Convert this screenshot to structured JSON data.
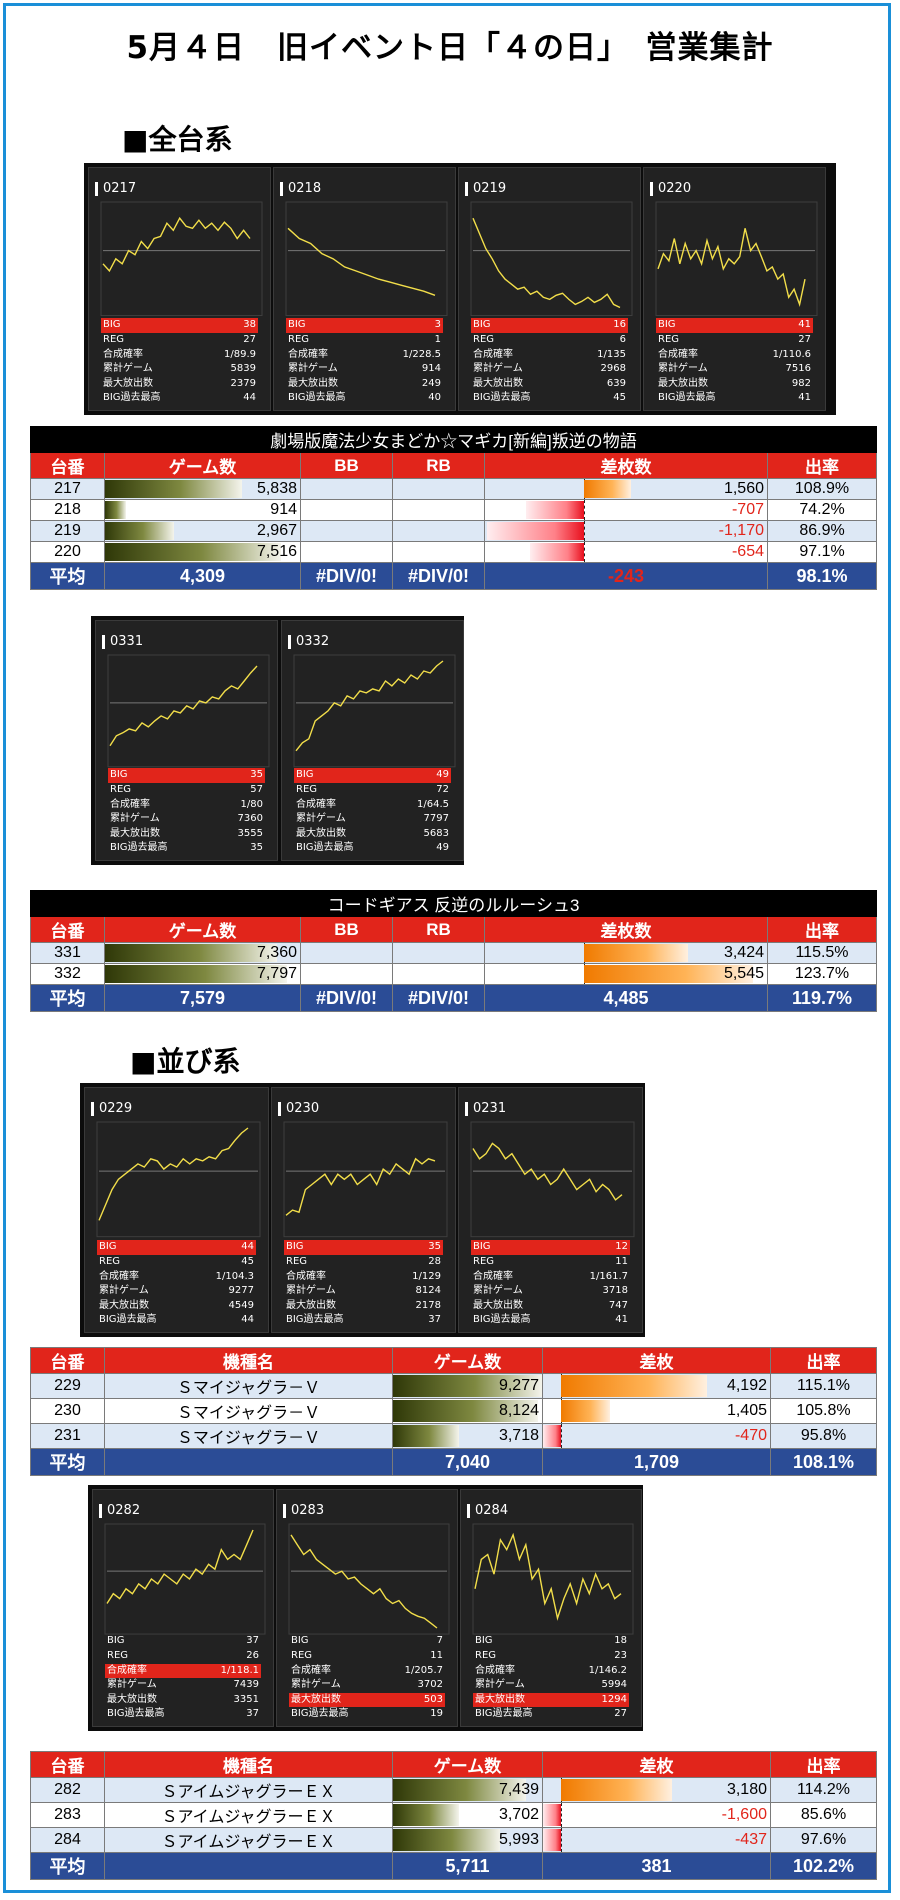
{
  "title": "5月４日　旧イベント日「４の日」　営業集計",
  "stat_labels": [
    "BIG",
    "REG",
    "合成確率",
    "累計ゲーム",
    "最大放出数",
    "BIG過去最高"
  ],
  "colors": {
    "header_red": "#e1251b",
    "avg_blue": "#2b4c96",
    "line_yellow": "#f2de4a",
    "frame_blue": "#1a8fd8"
  },
  "sections": [
    {
      "heading": "■全台系"
    },
    {
      "heading": "■並び系"
    }
  ],
  "blocks": [
    {
      "cards": [
        {
          "id": "0217",
          "stats": [
            "38",
            "27",
            "1/89.9",
            "5839",
            "2379",
            "44"
          ],
          "hl": 0,
          "pts": [
            0.55,
            0.62,
            0.5,
            0.55,
            0.42,
            0.46,
            0.33,
            0.4,
            0.3,
            0.28,
            0.15,
            0.22,
            0.1,
            0.18,
            0.2,
            0.12,
            0.2,
            0.15,
            0.22,
            0.14,
            0.2,
            0.3,
            0.22,
            0.3
          ]
        },
        {
          "id": "0218",
          "stats": [
            "3",
            "1",
            "1/228.5",
            "914",
            "249",
            "40"
          ],
          "hl": 0,
          "pts": [
            0.2,
            0.3,
            0.35,
            0.45,
            0.5,
            0.58,
            0.62,
            0.66,
            0.7,
            0.73,
            0.76,
            0.79,
            0.82,
            0.86
          ]
        },
        {
          "id": "0219",
          "stats": [
            "16",
            "6",
            "1/135",
            "2968",
            "639",
            "45"
          ],
          "hl": 0,
          "pts": [
            0.1,
            0.25,
            0.4,
            0.5,
            0.62,
            0.7,
            0.75,
            0.8,
            0.78,
            0.85,
            0.82,
            0.88,
            0.9,
            0.86,
            0.84,
            0.9,
            0.95,
            0.92,
            0.88,
            0.93,
            0.9,
            0.85,
            0.95,
            0.98
          ]
        },
        {
          "id": "0220",
          "stats": [
            "41",
            "27",
            "1/110.6",
            "7516",
            "982",
            "41"
          ],
          "hl": 0,
          "pts": [
            0.6,
            0.45,
            0.52,
            0.3,
            0.55,
            0.35,
            0.5,
            0.42,
            0.55,
            0.32,
            0.5,
            0.38,
            0.6,
            0.5,
            0.55,
            0.48,
            0.2,
            0.42,
            0.35,
            0.48,
            0.62,
            0.58,
            0.7,
            0.65,
            0.88,
            0.8,
            0.95,
            0.7
          ]
        }
      ],
      "table": {
        "kind": "type1",
        "machine": "劇場版魔法少女まどか☆マギカ[新編]叛逆の物語",
        "headers": [
          "台番",
          "ゲーム数",
          "BB",
          "RB",
          "差枚数",
          "出率"
        ],
        "rows": [
          {
            "no": "217",
            "games": "5,838",
            "g": 5838,
            "bb": "",
            "rb": "",
            "diff": "1,560",
            "d": 1560,
            "rate": "108.9%"
          },
          {
            "no": "218",
            "games": "914",
            "g": 914,
            "bb": "",
            "rb": "",
            "diff": "-707",
            "d": -707,
            "rate": "74.2%"
          },
          {
            "no": "219",
            "games": "2,967",
            "g": 2967,
            "bb": "",
            "rb": "",
            "diff": "-1,170",
            "d": -1170,
            "rate": "86.9%"
          },
          {
            "no": "220",
            "games": "7,516",
            "g": 7516,
            "bb": "",
            "rb": "",
            "diff": "-654",
            "d": -654,
            "rate": "97.1%"
          }
        ],
        "avg": {
          "label": "平均",
          "games": "4,309",
          "bb": "#DIV/0!",
          "rb": "#DIV/0!",
          "diff": "-243",
          "rate": "98.1%"
        }
      }
    },
    {
      "cards": [
        {
          "id": "0331",
          "stats": [
            "35",
            "57",
            "1/80",
            "7360",
            "3555",
            "35"
          ],
          "hl": 0,
          "pts": [
            0.85,
            0.75,
            0.72,
            0.68,
            0.7,
            0.62,
            0.66,
            0.6,
            0.55,
            0.58,
            0.5,
            0.52,
            0.45,
            0.48,
            0.4,
            0.42,
            0.36,
            0.38,
            0.3,
            0.25,
            0.28,
            0.2,
            0.12,
            0.05
          ]
        },
        {
          "id": "0332",
          "stats": [
            "49",
            "72",
            "1/64.5",
            "7797",
            "5683",
            "49"
          ],
          "hl": 0,
          "pts": [
            0.9,
            0.82,
            0.78,
            0.6,
            0.55,
            0.5,
            0.42,
            0.45,
            0.35,
            0.38,
            0.3,
            0.32,
            0.28,
            0.3,
            0.2,
            0.25,
            0.18,
            0.22,
            0.14,
            0.18,
            0.1,
            0.12,
            0.05,
            0.0
          ]
        }
      ],
      "table": {
        "kind": "type1",
        "machine": "コードギアス 反逆のルルーシュ3",
        "headers": [
          "台番",
          "ゲーム数",
          "BB",
          "RB",
          "差枚数",
          "出率"
        ],
        "rows": [
          {
            "no": "331",
            "games": "7,360",
            "g": 7360,
            "bb": "",
            "rb": "",
            "diff": "3,424",
            "d": 3424,
            "rate": "115.5%"
          },
          {
            "no": "332",
            "games": "7,797",
            "g": 7797,
            "bb": "",
            "rb": "",
            "diff": "5,545",
            "d": 5545,
            "rate": "123.7%"
          }
        ],
        "avg": {
          "label": "平均",
          "games": "7,579",
          "bb": "#DIV/0!",
          "rb": "#DIV/0!",
          "diff": "4,485",
          "rate": "119.7%"
        }
      }
    },
    {
      "cards": [
        {
          "id": "0229",
          "stats": [
            "44",
            "45",
            "1/104.3",
            "9277",
            "4549",
            "44"
          ],
          "hl": 0,
          "pts": [
            0.9,
            0.75,
            0.6,
            0.5,
            0.45,
            0.4,
            0.35,
            0.38,
            0.3,
            0.32,
            0.4,
            0.35,
            0.38,
            0.3,
            0.35,
            0.3,
            0.32,
            0.28,
            0.3,
            0.22,
            0.2,
            0.12,
            0.05,
            0.0
          ]
        },
        {
          "id": "0230",
          "stats": [
            "35",
            "28",
            "1/129",
            "8124",
            "2178",
            "37"
          ],
          "hl": 0,
          "pts": [
            0.85,
            0.8,
            0.82,
            0.6,
            0.55,
            0.5,
            0.45,
            0.55,
            0.45,
            0.5,
            0.45,
            0.55,
            0.5,
            0.45,
            0.55,
            0.4,
            0.45,
            0.35,
            0.4,
            0.45,
            0.3,
            0.35,
            0.3,
            0.32
          ]
        },
        {
          "id": "0231",
          "stats": [
            "12",
            "11",
            "1/161.7",
            "3718",
            "747",
            "41"
          ],
          "hl": 0,
          "pts": [
            0.2,
            0.3,
            0.25,
            0.15,
            0.2,
            0.3,
            0.25,
            0.35,
            0.45,
            0.4,
            0.5,
            0.45,
            0.55,
            0.5,
            0.4,
            0.5,
            0.6,
            0.55,
            0.5,
            0.62,
            0.55,
            0.6,
            0.7,
            0.65
          ]
        }
      ],
      "table": {
        "kind": "type2",
        "headers": [
          "台番",
          "機種名",
          "ゲーム数",
          "差枚",
          "出率"
        ],
        "rows": [
          {
            "no": "229",
            "name": "Ｓマイジャグラ－Ｖ",
            "games": "9,277",
            "g": 9277,
            "diff": "4,192",
            "d": 4192,
            "rate": "115.1%"
          },
          {
            "no": "230",
            "name": "Ｓマイジャグラ－Ｖ",
            "games": "8,124",
            "g": 8124,
            "diff": "1,405",
            "d": 1405,
            "rate": "105.8%"
          },
          {
            "no": "231",
            "name": "Ｓマイジャグラ－Ｖ",
            "games": "3,718",
            "g": 3718,
            "diff": "-470",
            "d": -470,
            "rate": "95.8%"
          }
        ],
        "avg": {
          "label": "平均",
          "name": "",
          "games": "7,040",
          "diff": "1,709",
          "rate": "108.1%"
        }
      }
    },
    {
      "cards": [
        {
          "id": "0282",
          "stats": [
            "37",
            "26",
            "1/118.1",
            "7439",
            "3351",
            "37"
          ],
          "hl": 2,
          "pts": [
            0.75,
            0.65,
            0.7,
            0.6,
            0.65,
            0.55,
            0.6,
            0.5,
            0.55,
            0.45,
            0.5,
            0.55,
            0.45,
            0.5,
            0.4,
            0.45,
            0.35,
            0.4,
            0.2,
            0.3,
            0.25,
            0.3,
            0.15,
            0.0
          ]
        },
        {
          "id": "0283",
          "stats": [
            "7",
            "11",
            "1/205.7",
            "3702",
            "503",
            "19"
          ],
          "hl": 4,
          "pts": [
            0.05,
            0.15,
            0.25,
            0.2,
            0.3,
            0.35,
            0.4,
            0.45,
            0.42,
            0.5,
            0.48,
            0.55,
            0.6,
            0.65,
            0.6,
            0.7,
            0.75,
            0.72,
            0.8,
            0.85,
            0.88,
            0.9,
            0.95,
            1.0
          ]
        },
        {
          "id": "0284",
          "stats": [
            "18",
            "23",
            "1/146.2",
            "5994",
            "1294",
            "27"
          ],
          "hl": 4,
          "pts": [
            0.6,
            0.3,
            0.25,
            0.45,
            0.1,
            0.2,
            0.05,
            0.3,
            0.15,
            0.5,
            0.4,
            0.75,
            0.6,
            0.9,
            0.7,
            0.55,
            0.75,
            0.5,
            0.65,
            0.45,
            0.6,
            0.55,
            0.7,
            0.65
          ]
        }
      ],
      "table": {
        "kind": "type2",
        "headers": [
          "台番",
          "機種名",
          "ゲーム数",
          "差枚",
          "出率"
        ],
        "rows": [
          {
            "no": "282",
            "name": "ＳアイムジャグラーＥＸ",
            "games": "7,439",
            "g": 7439,
            "diff": "3,180",
            "d": 3180,
            "rate": "114.2%"
          },
          {
            "no": "283",
            "name": "ＳアイムジャグラーＥＸ",
            "games": "3,702",
            "g": 3702,
            "diff": "-1,600",
            "d": -1600,
            "rate": "85.6%"
          },
          {
            "no": "284",
            "name": "ＳアイムジャグラーＥＸ",
            "games": "5,993",
            "g": 5993,
            "diff": "-437",
            "d": -437,
            "rate": "97.6%"
          }
        ],
        "avg": {
          "label": "平均",
          "name": "",
          "games": "5,711",
          "diff": "381",
          "rate": "102.2%"
        }
      }
    }
  ]
}
